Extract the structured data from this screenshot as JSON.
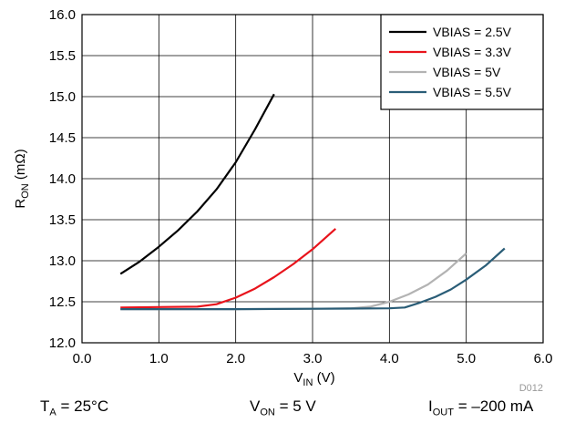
{
  "chart_data": {
    "type": "line",
    "xlabel": {
      "main": "V",
      "sub": "IN",
      "unit": " (V)"
    },
    "ylabel": {
      "main": "R",
      "sub": "ON",
      "unit": " (mΩ)"
    },
    "xlim": [
      0,
      6
    ],
    "ylim": [
      12,
      16
    ],
    "xticks": [
      "0.0",
      "1.0",
      "2.0",
      "3.0",
      "4.0",
      "5.0",
      "6.0"
    ],
    "yticks": [
      "12.0",
      "12.5",
      "13.0",
      "13.5",
      "14.0",
      "14.5",
      "15.0",
      "15.5",
      "16.0"
    ],
    "grid": true,
    "legend_position": "top-right",
    "series": [
      {
        "name": "VBIAS = 2.5V",
        "color": "#000000",
        "x": [
          0.5,
          0.75,
          1.0,
          1.25,
          1.5,
          1.75,
          2.0,
          2.25,
          2.5
        ],
        "y": [
          12.84,
          12.99,
          13.17,
          13.37,
          13.6,
          13.87,
          14.2,
          14.6,
          15.03
        ]
      },
      {
        "name": "VBIAS = 3.3V",
        "color": "#e8141c",
        "x": [
          0.5,
          1.0,
          1.5,
          1.75,
          2.0,
          2.25,
          2.5,
          2.75,
          3.0,
          3.3
        ],
        "y": [
          12.43,
          12.435,
          12.44,
          12.47,
          12.55,
          12.66,
          12.8,
          12.96,
          13.14,
          13.39
        ]
      },
      {
        "name": "VBIAS = 5V",
        "color": "#b3b3b3",
        "x": [
          0.5,
          2.0,
          3.0,
          3.5,
          3.75,
          4.0,
          4.25,
          4.5,
          4.75,
          5.0
        ],
        "y": [
          12.41,
          12.41,
          12.415,
          12.42,
          12.44,
          12.5,
          12.59,
          12.71,
          12.88,
          13.09
        ]
      },
      {
        "name": "VBIAS = 5.5V",
        "color": "#2a5d77",
        "x": [
          0.5,
          2.0,
          3.0,
          4.0,
          4.2,
          4.4,
          4.6,
          4.8,
          5.0,
          5.25,
          5.5
        ],
        "y": [
          12.41,
          12.41,
          12.415,
          12.42,
          12.43,
          12.49,
          12.56,
          12.65,
          12.77,
          12.94,
          13.15
        ]
      }
    ]
  },
  "figure_code": "D012",
  "conditions": {
    "ta": {
      "main": "T",
      "sub": "A",
      "rest": " = 25°C"
    },
    "von": {
      "main": "V",
      "sub": "ON",
      "rest": " = 5 V"
    },
    "iout": {
      "main": "I",
      "sub": "OUT",
      "rest": " = –200 mA"
    }
  }
}
